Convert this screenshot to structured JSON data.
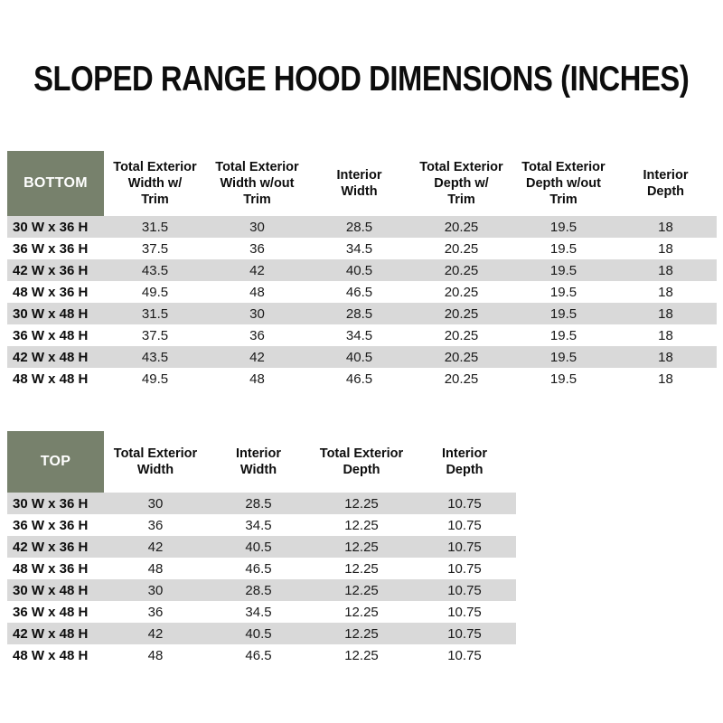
{
  "page": {
    "title": "SLOPED RANGE HOOD DIMENSIONS (INCHES)"
  },
  "colors": {
    "header_green": "#77816C",
    "stripe_gray": "#D9D9D9",
    "header_text": "#FFFFFF",
    "body_text": "#1A1A1A"
  },
  "bottom_table": {
    "name": "bottom-table",
    "label": "BOTTOM",
    "columns": [
      [
        "Total Exterior",
        "Width w/",
        "Trim"
      ],
      [
        "Total Exterior",
        "Width w/out",
        "Trim"
      ],
      [
        "Interior",
        "Width"
      ],
      [
        "Total Exterior",
        "Depth w/",
        "Trim"
      ],
      [
        "Total Exterior",
        "Depth w/out",
        "Trim"
      ],
      [
        "Interior",
        "Depth"
      ]
    ],
    "rows": [
      {
        "label": "30 W x 36 H",
        "values": [
          "31.5",
          "30",
          "28.5",
          "20.25",
          "19.5",
          "18"
        ]
      },
      {
        "label": "36 W x 36 H",
        "values": [
          "37.5",
          "36",
          "34.5",
          "20.25",
          "19.5",
          "18"
        ]
      },
      {
        "label": "42 W x 36 H",
        "values": [
          "43.5",
          "42",
          "40.5",
          "20.25",
          "19.5",
          "18"
        ]
      },
      {
        "label": "48 W x 36 H",
        "values": [
          "49.5",
          "48",
          "46.5",
          "20.25",
          "19.5",
          "18"
        ]
      },
      {
        "label": "30 W x 48 H",
        "values": [
          "31.5",
          "30",
          "28.5",
          "20.25",
          "19.5",
          "18"
        ]
      },
      {
        "label": "36 W x 48 H",
        "values": [
          "37.5",
          "36",
          "34.5",
          "20.25",
          "19.5",
          "18"
        ]
      },
      {
        "label": "42 W x 48 H",
        "values": [
          "43.5",
          "42",
          "40.5",
          "20.25",
          "19.5",
          "18"
        ]
      },
      {
        "label": "48 W x 48 H",
        "values": [
          "49.5",
          "48",
          "46.5",
          "20.25",
          "19.5",
          "18"
        ]
      }
    ]
  },
  "top_table": {
    "name": "top-table",
    "label": "TOP",
    "columns": [
      [
        "Total Exterior",
        "Width"
      ],
      [
        "Interior",
        "Width"
      ],
      [
        "Total Exterior",
        "Depth"
      ],
      [
        "Interior",
        "Depth"
      ]
    ],
    "rows": [
      {
        "label": "30 W x 36 H",
        "values": [
          "30",
          "28.5",
          "12.25",
          "10.75"
        ]
      },
      {
        "label": "36 W x 36 H",
        "values": [
          "36",
          "34.5",
          "12.25",
          "10.75"
        ]
      },
      {
        "label": "42 W x 36 H",
        "values": [
          "42",
          "40.5",
          "12.25",
          "10.75"
        ]
      },
      {
        "label": "48 W x 36 H",
        "values": [
          "48",
          "46.5",
          "12.25",
          "10.75"
        ]
      },
      {
        "label": "30 W x 48 H",
        "values": [
          "30",
          "28.5",
          "12.25",
          "10.75"
        ]
      },
      {
        "label": "36 W x 48 H",
        "values": [
          "36",
          "34.5",
          "12.25",
          "10.75"
        ]
      },
      {
        "label": "42 W x 48 H",
        "values": [
          "42",
          "40.5",
          "12.25",
          "10.75"
        ]
      },
      {
        "label": "48 W x 48 H",
        "values": [
          "48",
          "46.5",
          "12.25",
          "10.75"
        ]
      }
    ]
  }
}
